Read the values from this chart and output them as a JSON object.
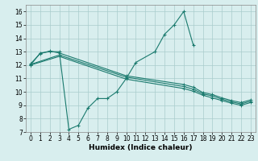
{
  "xlabel": "Humidex (Indice chaleur)",
  "bg_color": "#d8eeee",
  "grid_color": "#aacccc",
  "line_color": "#1a7a6e",
  "xlim": [
    -0.5,
    23.5
  ],
  "ylim": [
    7,
    16.5
  ],
  "xticks": [
    0,
    1,
    2,
    3,
    4,
    5,
    6,
    7,
    8,
    9,
    10,
    11,
    12,
    13,
    14,
    15,
    16,
    17,
    18,
    19,
    20,
    21,
    22,
    23
  ],
  "yticks": [
    7,
    8,
    9,
    10,
    11,
    12,
    13,
    14,
    15,
    16
  ],
  "line1_x": [
    0,
    1,
    2,
    3,
    4,
    5,
    6,
    7,
    8,
    9,
    10,
    11,
    13,
    14,
    15,
    16,
    17
  ],
  "line1_y": [
    12.0,
    12.9,
    13.0,
    13.0,
    7.2,
    7.5,
    8.8,
    9.5,
    9.5,
    10.0,
    11.0,
    12.2,
    13.0,
    14.3,
    15.0,
    16.0,
    13.5
  ],
  "line2_x": [
    0,
    1,
    2,
    3,
    10,
    16,
    17,
    18,
    19,
    20,
    21,
    22,
    23
  ],
  "line2_y": [
    12.1,
    12.85,
    13.05,
    12.9,
    11.2,
    10.55,
    10.35,
    9.95,
    9.8,
    9.55,
    9.35,
    9.2,
    9.4
  ],
  "line3_x": [
    0,
    3,
    10,
    16,
    17,
    18,
    19,
    20,
    21,
    22,
    23
  ],
  "line3_y": [
    12.05,
    12.75,
    11.1,
    10.4,
    10.2,
    9.85,
    9.7,
    9.45,
    9.25,
    9.1,
    9.3
  ],
  "line4_x": [
    0,
    3,
    10,
    16,
    17,
    18,
    19,
    20,
    21,
    22,
    23
  ],
  "line4_y": [
    12.0,
    12.65,
    10.95,
    10.25,
    10.05,
    9.75,
    9.55,
    9.35,
    9.15,
    9.0,
    9.2
  ]
}
